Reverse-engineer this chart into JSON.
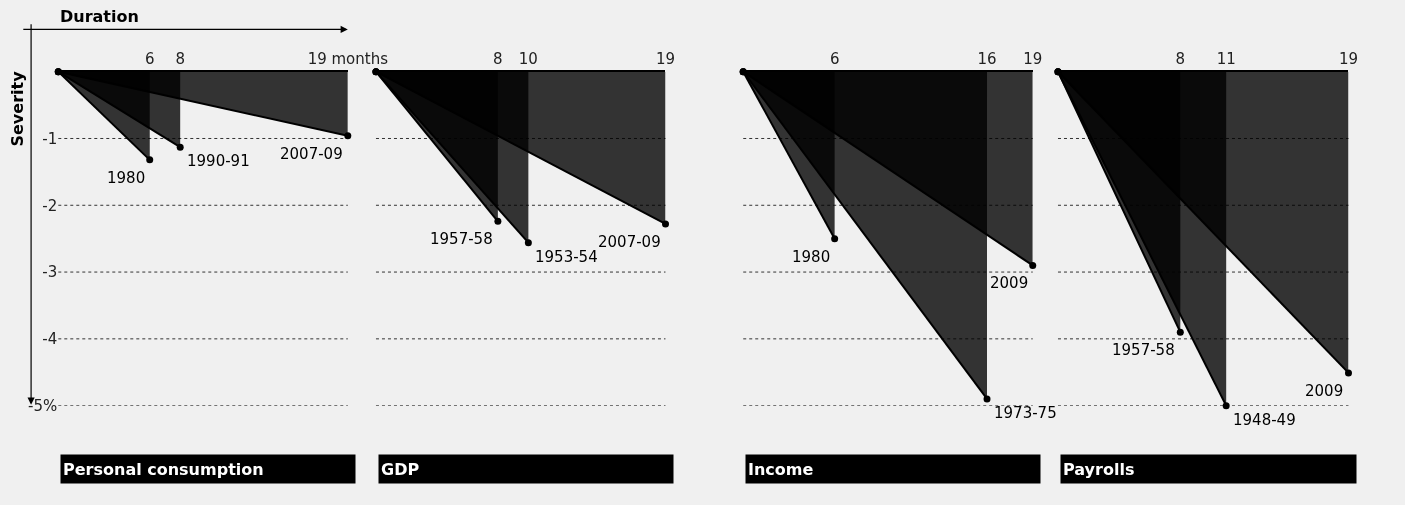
{
  "chart_data": [
    {
      "type": "area",
      "title": "Personal consumption",
      "xlabel": "Duration",
      "ylabel": "Severity",
      "xlim": [
        0,
        19
      ],
      "xticks": [
        6,
        8,
        {
          "value": 19,
          "label": "19 months"
        }
      ],
      "ylim": [
        -5,
        0
      ],
      "yticks": [
        -1,
        -2,
        -3,
        -4,
        {
          "value": -5,
          "label": "-5%"
        }
      ],
      "grid": "y",
      "marker": "circle",
      "series": [
        {
          "name": "1980",
          "color": "#000000",
          "x": [
            0,
            6
          ],
          "values": [
            0,
            -1.32
          ]
        },
        {
          "name": "1990-91",
          "color": "#000000",
          "x": [
            0,
            8
          ],
          "values": [
            0,
            -1.13
          ]
        },
        {
          "name": "2007-09",
          "color": "#000000",
          "x": [
            0,
            19
          ],
          "values": [
            0,
            -0.96
          ]
        }
      ]
    },
    {
      "type": "area",
      "title": "GDP",
      "xlim": [
        0,
        19
      ],
      "xticks": [
        8,
        10,
        19
      ],
      "ylim": [
        -5,
        0
      ],
      "yticks": [
        -1,
        -2,
        -3,
        -4,
        -5
      ],
      "tick_labels": "x",
      "grid": "y",
      "marker": "circle",
      "series": [
        {
          "name": "1957-58",
          "color": "#000000",
          "x": [
            0,
            8
          ],
          "values": [
            0,
            -2.24
          ]
        },
        {
          "name": "1953-54",
          "color": "#000000",
          "x": [
            0,
            10
          ],
          "values": [
            0,
            -2.56
          ]
        },
        {
          "name": "2007-09",
          "color": "#000000",
          "x": [
            0,
            19
          ],
          "values": [
            0,
            -2.28
          ]
        }
      ]
    },
    {
      "type": "area",
      "title": "Income",
      "xlim": [
        0,
        19
      ],
      "xticks": [
        6,
        16,
        19
      ],
      "ylim": [
        -5,
        0
      ],
      "yticks": [
        -1,
        -2,
        -3,
        -4,
        -5
      ],
      "tick_labels": "x",
      "grid": "y",
      "marker": "circle",
      "series": [
        {
          "name": "1980",
          "color": "#000000",
          "x": [
            0,
            6
          ],
          "values": [
            0,
            -2.5
          ]
        },
        {
          "name": "1973-75",
          "color": "#000000",
          "x": [
            0,
            16
          ],
          "values": [
            0,
            -4.9
          ]
        },
        {
          "name": "2009",
          "color": "#000000",
          "x": [
            0,
            19
          ],
          "values": [
            0,
            -2.9
          ]
        }
      ]
    },
    {
      "type": "area",
      "title": "Payrolls",
      "xlim": [
        0,
        19
      ],
      "xticks": [
        8,
        11,
        19
      ],
      "ylim": [
        -5,
        0
      ],
      "yticks": [
        -1,
        -2,
        -3,
        -4,
        -5
      ],
      "tick_labels": "x",
      "grid": "y",
      "marker": "circle",
      "series": [
        {
          "name": "1957-58",
          "color": "#000000",
          "x": [
            0,
            8
          ],
          "values": [
            0,
            -3.9
          ]
        },
        {
          "name": "1948-49",
          "color": "#000000",
          "x": [
            0,
            11
          ],
          "values": [
            0,
            -5.0
          ]
        },
        {
          "name": "2009",
          "color": "#000000",
          "x": [
            0,
            19
          ],
          "values": [
            0,
            -4.51
          ]
        }
      ]
    }
  ]
}
